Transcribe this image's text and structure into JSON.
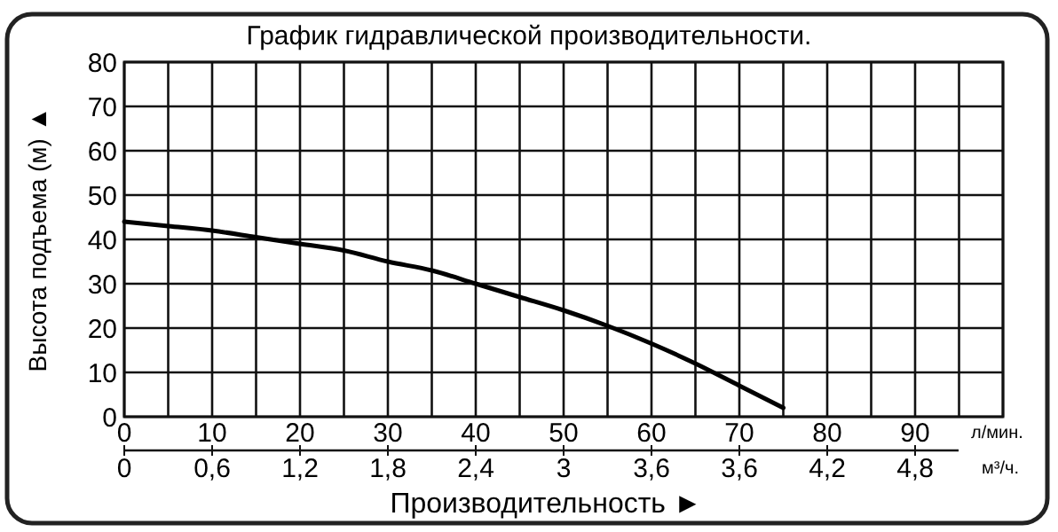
{
  "chart_data": {
    "type": "line",
    "title": "График гидравлической производительности.",
    "xlabel": "Производительность ►",
    "ylabel": "Высота подъема (м) ▲",
    "annotations": [
      "л/мин.",
      "м³/ч.",
      "0",
      "0,6",
      "1,2",
      "1,8",
      "2,4",
      "3",
      "3,6",
      "3,6",
      "4,2",
      "4,8"
    ],
    "x": [
      0,
      5,
      10,
      15,
      20,
      25,
      30,
      35,
      40,
      45,
      50,
      55,
      60,
      65,
      70,
      75
    ],
    "series": [
      {
        "color": "#000000",
        "values": [
          44,
          43,
          42,
          40.5,
          39,
          37.5,
          35,
          33,
          30,
          27,
          24,
          20.5,
          16.5,
          12,
          7,
          2
        ]
      }
    ],
    "xlim": [
      0,
      100
    ],
    "xticks": [
      0,
      10,
      20,
      30,
      40,
      50,
      60,
      70,
      80,
      90
    ],
    "ylim": [
      0,
      80
    ],
    "yticks": [
      0,
      10,
      20,
      30,
      40,
      50,
      60,
      70,
      80
    ],
    "grid": true,
    "marker": "none",
    "line_style": "solid"
  }
}
